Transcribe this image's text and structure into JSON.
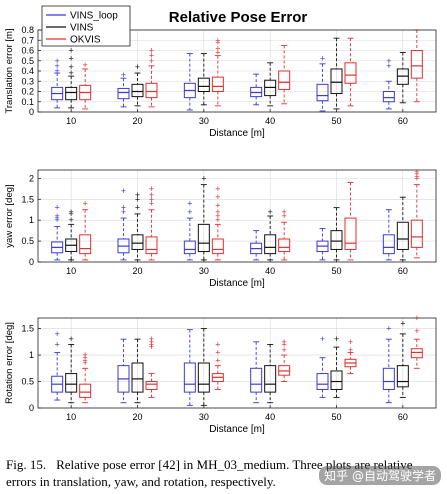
{
  "figure_title": "Relative Pose Error",
  "caption": {
    "label": "Fig. 15.",
    "text": "Relative pose error [42] in MH_03_medium. Three plots are relative errors in translation, yaw, and rotation, respectively."
  },
  "watermark": "知乎 @自动驾驶学者",
  "colors": {
    "VINS_loop": "#3a3ad6",
    "VINS": "#111111",
    "OKVIS": "#e03030"
  },
  "chart_data": [
    {
      "type": "box",
      "title": "Relative Pose Error",
      "ylabel": "Translation error [m]",
      "xlabel": "Distance [m]",
      "categories": [
        "10",
        "20",
        "30",
        "40",
        "50",
        "60"
      ],
      "ylim": [
        0,
        0.8
      ],
      "yticks": [
        0,
        0.1,
        0.2,
        0.3,
        0.4,
        0.5,
        0.6,
        0.7,
        0.8
      ],
      "ytick_labels": [
        "0",
        "0.1",
        "0.2",
        "0.3",
        "0.4",
        "0.5",
        "0.6",
        "0.7",
        "0.8"
      ],
      "legend": {
        "position": "top-left",
        "entries": [
          "VINS_loop",
          "VINS",
          "OKVIS"
        ]
      },
      "series": [
        {
          "name": "VINS_loop",
          "boxes": [
            {
              "min": 0.04,
              "q1": 0.12,
              "median": 0.18,
              "q3": 0.24,
              "max": 0.38,
              "outliers": [
                0.4,
                0.45,
                0.5
              ]
            },
            {
              "min": 0.05,
              "q1": 0.13,
              "median": 0.19,
              "q3": 0.23,
              "max": 0.33,
              "outliers": [
                0.36
              ]
            },
            {
              "min": 0.02,
              "q1": 0.14,
              "median": 0.21,
              "q3": 0.28,
              "max": 0.57,
              "outliers": []
            },
            {
              "min": 0.07,
              "q1": 0.15,
              "median": 0.19,
              "q3": 0.24,
              "max": 0.37,
              "outliers": []
            },
            {
              "min": 0.01,
              "q1": 0.11,
              "median": 0.16,
              "q3": 0.27,
              "max": 0.47,
              "outliers": [
                0.52
              ]
            },
            {
              "min": 0.03,
              "q1": 0.1,
              "median": 0.14,
              "q3": 0.2,
              "max": 0.3,
              "outliers": [
                0.45,
                0.5
              ]
            }
          ]
        },
        {
          "name": "VINS",
          "boxes": [
            {
              "min": 0.04,
              "q1": 0.12,
              "median": 0.19,
              "q3": 0.24,
              "max": 0.35,
              "outliers": [
                0.38,
                0.44,
                0.52,
                0.6,
                0.66
              ]
            },
            {
              "min": 0.06,
              "q1": 0.15,
              "median": 0.2,
              "q3": 0.27,
              "max": 0.38,
              "outliers": [
                0.44
              ]
            },
            {
              "min": 0.07,
              "q1": 0.2,
              "median": 0.25,
              "q3": 0.33,
              "max": 0.57,
              "outliers": []
            },
            {
              "min": 0.06,
              "q1": 0.16,
              "median": 0.24,
              "q3": 0.31,
              "max": 0.48,
              "outliers": []
            },
            {
              "min": 0.03,
              "q1": 0.18,
              "median": 0.29,
              "q3": 0.42,
              "max": 0.72,
              "outliers": []
            },
            {
              "min": 0.09,
              "q1": 0.27,
              "median": 0.35,
              "q3": 0.42,
              "max": 0.58,
              "outliers": []
            }
          ]
        },
        {
          "name": "OKVIS",
          "boxes": [
            {
              "min": 0.03,
              "q1": 0.12,
              "median": 0.19,
              "q3": 0.26,
              "max": 0.42,
              "outliers": [
                0.46
              ]
            },
            {
              "min": 0.05,
              "q1": 0.14,
              "median": 0.2,
              "q3": 0.28,
              "max": 0.45,
              "outliers": [
                0.5,
                0.55,
                0.6
              ]
            },
            {
              "min": 0.06,
              "q1": 0.2,
              "median": 0.25,
              "q3": 0.34,
              "max": 0.55,
              "outliers": [
                0.58,
                0.62,
                0.68,
                0.7
              ]
            },
            {
              "min": 0.08,
              "q1": 0.22,
              "median": 0.29,
              "q3": 0.4,
              "max": 0.65,
              "outliers": []
            },
            {
              "min": 0.06,
              "q1": 0.28,
              "median": 0.36,
              "q3": 0.48,
              "max": 0.72,
              "outliers": []
            },
            {
              "min": 0.1,
              "q1": 0.33,
              "median": 0.45,
              "q3": 0.6,
              "max": 0.8,
              "outliers": []
            }
          ]
        }
      ]
    },
    {
      "type": "box",
      "title": "",
      "ylabel": "yaw error [deg]",
      "xlabel": "Distance [m]",
      "categories": [
        "10",
        "20",
        "30",
        "40",
        "50",
        "60"
      ],
      "ylim": [
        0,
        2.2
      ],
      "yticks": [
        0,
        0.5,
        1,
        1.5,
        2
      ],
      "ytick_labels": [
        "0",
        "0.5",
        "1",
        "1.5",
        "2"
      ],
      "series": [
        {
          "name": "VINS_loop",
          "boxes": [
            {
              "min": 0.05,
              "q1": 0.22,
              "median": 0.35,
              "q3": 0.48,
              "max": 0.85,
              "outliers": [
                1.0,
                1.05,
                1.1,
                1.3
              ]
            },
            {
              "min": 0.05,
              "q1": 0.22,
              "median": 0.38,
              "q3": 0.55,
              "max": 1.05,
              "outliers": [
                1.2,
                1.3,
                1.7
              ]
            },
            {
              "min": 0.05,
              "q1": 0.2,
              "median": 0.3,
              "q3": 0.5,
              "max": 1.05,
              "outliers": [
                1.2,
                1.4
              ]
            },
            {
              "min": 0.05,
              "q1": 0.2,
              "median": 0.32,
              "q3": 0.45,
              "max": 0.75,
              "outliers": []
            },
            {
              "min": 0.05,
              "q1": 0.25,
              "median": 0.38,
              "q3": 0.5,
              "max": 0.8,
              "outliers": []
            },
            {
              "min": 0.05,
              "q1": 0.2,
              "median": 0.35,
              "q3": 0.65,
              "max": 1.25,
              "outliers": []
            }
          ]
        },
        {
          "name": "VINS",
          "boxes": [
            {
              "min": 0.05,
              "q1": 0.25,
              "median": 0.4,
              "q3": 0.55,
              "max": 0.9,
              "outliers": [
                1.0,
                1.15,
                1.2
              ]
            },
            {
              "min": 0.05,
              "q1": 0.3,
              "median": 0.45,
              "q3": 0.65,
              "max": 1.15,
              "outliers": [
                1.3,
                1.5,
                1.6
              ]
            },
            {
              "min": 0.05,
              "q1": 0.25,
              "median": 0.45,
              "q3": 0.9,
              "max": 1.85,
              "outliers": [
                2.0
              ]
            },
            {
              "min": 0.05,
              "q1": 0.2,
              "median": 0.35,
              "q3": 0.65,
              "max": 1.1,
              "outliers": [
                1.2
              ]
            },
            {
              "min": 0.05,
              "q1": 0.3,
              "median": 0.5,
              "q3": 0.75,
              "max": 1.3,
              "outliers": []
            },
            {
              "min": 0.05,
              "q1": 0.3,
              "median": 0.55,
              "q3": 0.95,
              "max": 1.55,
              "outliers": []
            }
          ]
        },
        {
          "name": "OKVIS",
          "boxes": [
            {
              "min": 0.05,
              "q1": 0.2,
              "median": 0.32,
              "q3": 0.65,
              "max": 1.25,
              "outliers": [
                1.4
              ]
            },
            {
              "min": 0.05,
              "q1": 0.2,
              "median": 0.3,
              "q3": 0.6,
              "max": 1.25,
              "outliers": [
                1.4,
                1.5,
                1.6,
                1.75
              ]
            },
            {
              "min": 0.05,
              "q1": 0.2,
              "median": 0.3,
              "q3": 0.55,
              "max": 0.9,
              "outliers": [
                1.0,
                1.1,
                1.2,
                1.35,
                1.55,
                1.75
              ]
            },
            {
              "min": 0.05,
              "q1": 0.25,
              "median": 0.35,
              "q3": 0.55,
              "max": 0.95,
              "outliers": [
                1.1,
                1.2
              ]
            },
            {
              "min": 0.05,
              "q1": 0.3,
              "median": 0.45,
              "q3": 1.05,
              "max": 1.9,
              "outliers": []
            },
            {
              "min": 0.1,
              "q1": 0.35,
              "median": 0.6,
              "q3": 1.0,
              "max": 1.85,
              "outliers": [
                2.0,
                2.05,
                2.1,
                2.15
              ]
            }
          ]
        }
      ]
    },
    {
      "type": "box",
      "title": "",
      "ylabel": "Rotation error [deg]",
      "xlabel": "Distance [m]",
      "categories": [
        "10",
        "20",
        "30",
        "40",
        "50",
        "60"
      ],
      "ylim": [
        0,
        1.7
      ],
      "yticks": [
        0,
        0.5,
        1,
        1.5
      ],
      "ytick_labels": [
        "0",
        "0.5",
        "1",
        "1.5"
      ],
      "series": [
        {
          "name": "VINS_loop",
          "boxes": [
            {
              "min": 0.15,
              "q1": 0.3,
              "median": 0.45,
              "q3": 0.6,
              "max": 1.05,
              "outliers": [
                1.2,
                1.4
              ]
            },
            {
              "min": 0.1,
              "q1": 0.3,
              "median": 0.55,
              "q3": 0.8,
              "max": 1.3,
              "outliers": []
            },
            {
              "min": 0.05,
              "q1": 0.3,
              "median": 0.45,
              "q3": 0.85,
              "max": 1.48,
              "outliers": []
            },
            {
              "min": 0.1,
              "q1": 0.3,
              "median": 0.45,
              "q3": 0.75,
              "max": 1.25,
              "outliers": []
            },
            {
              "min": 0.2,
              "q1": 0.35,
              "median": 0.45,
              "q3": 0.65,
              "max": 0.95,
              "outliers": [
                1.3
              ]
            },
            {
              "min": 0.1,
              "q1": 0.35,
              "median": 0.5,
              "q3": 0.75,
              "max": 1.3,
              "outliers": [
                1.5
              ]
            }
          ]
        },
        {
          "name": "VINS",
          "boxes": [
            {
              "min": 0.1,
              "q1": 0.3,
              "median": 0.45,
              "q3": 0.65,
              "max": 1.2,
              "outliers": [
                1.3
              ]
            },
            {
              "min": 0.1,
              "q1": 0.3,
              "median": 0.55,
              "q3": 0.85,
              "max": 1.3,
              "outliers": []
            },
            {
              "min": 0.05,
              "q1": 0.3,
              "median": 0.45,
              "q3": 0.85,
              "max": 1.5,
              "outliers": []
            },
            {
              "min": 0.1,
              "q1": 0.3,
              "median": 0.45,
              "q3": 0.8,
              "max": 1.2,
              "outliers": []
            },
            {
              "min": 0.2,
              "q1": 0.35,
              "median": 0.5,
              "q3": 0.7,
              "max": 1.15,
              "outliers": [
                1.3
              ]
            },
            {
              "min": 0.2,
              "q1": 0.4,
              "median": 0.5,
              "q3": 0.8,
              "max": 1.4,
              "outliers": [
                1.6
              ]
            }
          ]
        },
        {
          "name": "OKVIS",
          "boxes": [
            {
              "min": 0.1,
              "q1": 0.2,
              "median": 0.3,
              "q3": 0.45,
              "max": 0.75,
              "outliers": [
                0.85,
                0.9,
                0.95,
                1.0
              ]
            },
            {
              "min": 0.2,
              "q1": 0.35,
              "median": 0.45,
              "q3": 0.5,
              "max": 0.65,
              "outliers": [
                1.15,
                1.2,
                1.25,
                1.3
              ]
            },
            {
              "min": 0.35,
              "q1": 0.5,
              "median": 0.58,
              "q3": 0.65,
              "max": 0.8,
              "outliers": [
                0.9,
                1.05,
                1.2
              ]
            },
            {
              "min": 0.5,
              "q1": 0.62,
              "median": 0.7,
              "q3": 0.8,
              "max": 1.0,
              "outliers": [
                1.1,
                1.2,
                1.25
              ]
            },
            {
              "min": 0.65,
              "q1": 0.78,
              "median": 0.85,
              "q3": 0.92,
              "max": 1.05,
              "outliers": [
                1.1,
                1.25
              ]
            },
            {
              "min": 0.75,
              "q1": 0.95,
              "median": 1.05,
              "q3": 1.12,
              "max": 1.3,
              "outliers": [
                1.45,
                1.7
              ]
            }
          ]
        }
      ]
    }
  ]
}
